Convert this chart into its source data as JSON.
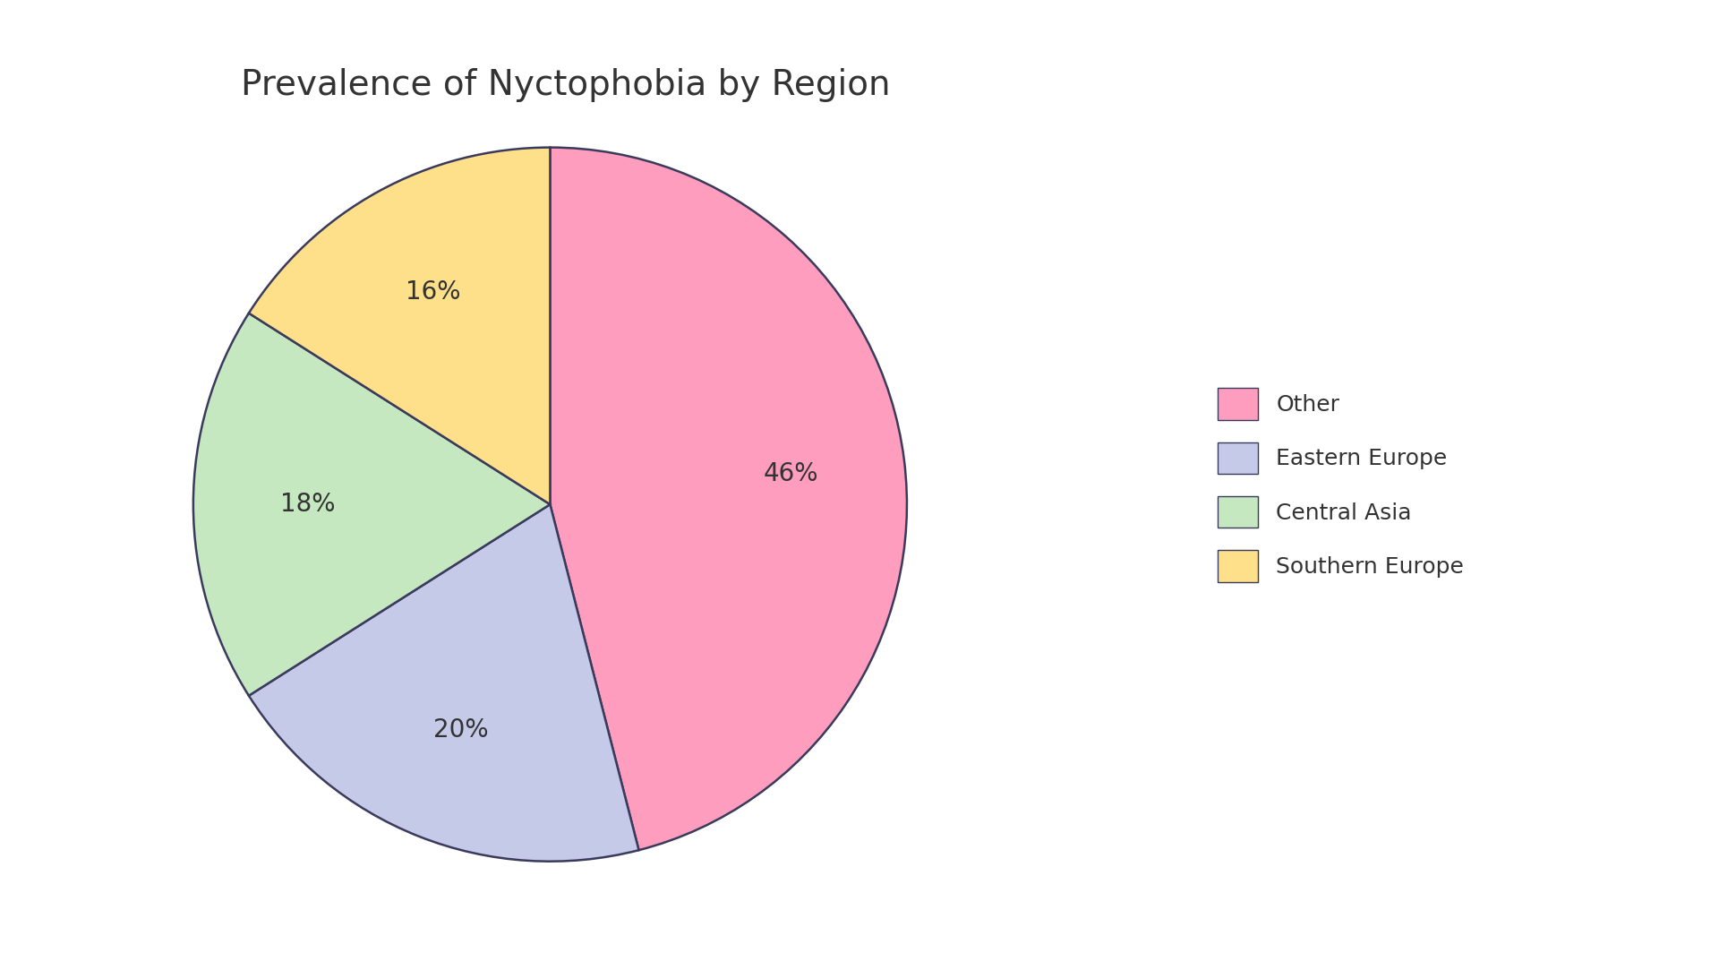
{
  "title": "Prevalence of Nyctophobia by Region",
  "labels": [
    "Other",
    "Eastern Europe",
    "Central Asia",
    "Southern Europe"
  ],
  "values": [
    46,
    20,
    18,
    16
  ],
  "colors": [
    "#FF9DBE",
    "#C5CAE9",
    "#C5E8C0",
    "#FFE08A"
  ],
  "edge_color": "#3a3a5c",
  "edge_width": 1.8,
  "autopct_fontsize": 20,
  "title_fontsize": 28,
  "legend_fontsize": 18,
  "start_angle": 90,
  "background_color": "#ffffff"
}
